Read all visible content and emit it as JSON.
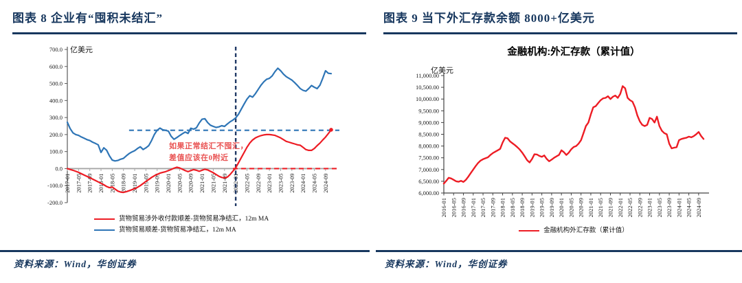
{
  "panels": {
    "fig8": {
      "title": "图表 8  企业有“囤积未结汇”",
      "unit": "亿美元",
      "annotation_line1": "如果正常结汇不囤汇，",
      "annotation_line2": "差值应该在0附近",
      "source": "资料来源：Wind，华创证券"
    },
    "fig9": {
      "title": "图表 9  当下外汇存款余额 8000+亿美元",
      "chart_title": "金融机构:外汇存款（累计值）",
      "unit": "亿美元",
      "source": "资料来源：Wind，华创证券"
    }
  },
  "chart_data": [
    {
      "id": "fig8",
      "type": "line",
      "title": "企业有“囤积未结汇”",
      "ylabel": "亿美元",
      "ylim": [
        -200,
        700
      ],
      "x_start": "2017-01",
      "x_end": "2024-11",
      "grid": false,
      "legend_position": "bottom",
      "y_ticks": [
        {
          "v": 700,
          "label": "700.0"
        },
        {
          "v": 600,
          "label": "600.0"
        },
        {
          "v": 500,
          "label": "500.0"
        },
        {
          "v": 400,
          "label": "400.0"
        },
        {
          "v": 300,
          "label": "300.0"
        },
        {
          "v": 200,
          "label": "200.0"
        },
        {
          "v": 100,
          "label": "100.0"
        },
        {
          "v": 0,
          "label": "0.0"
        },
        {
          "v": -100,
          "label": "-100.0"
        },
        {
          "v": -200,
          "label": "-200.0"
        }
      ],
      "x_tick_labels": [
        "2017-01",
        "2017-05",
        "2017-09",
        "2018-01",
        "2018-05",
        "2018-09",
        "2019-01",
        "2019-05",
        "2019-09",
        "2020-01",
        "2020-05",
        "2020-09",
        "2021-01",
        "2021-05",
        "2021-09",
        "2022-01",
        "2022-05",
        "2022-09",
        "2023-01",
        "2023-05",
        "2023-09",
        "2024-01",
        "2024-05",
        "2024-09"
      ],
      "series": [
        {
          "name": "货物贸易涉外收付款顺差-货物贸易净结汇，12m MA",
          "color": "#ed1c24",
          "values": [
            0,
            -5,
            -10,
            -16,
            -22,
            -30,
            -38,
            -46,
            -54,
            -62,
            -70,
            -78,
            -86,
            -95,
            -105,
            -112,
            -108,
            -120,
            -132,
            -138,
            -140,
            -136,
            -130,
            -124,
            -118,
            -110,
            -100,
            -88,
            -75,
            -64,
            -52,
            -42,
            -34,
            -27,
            -22,
            -18,
            -12,
            -5,
            2,
            8,
            4,
            -4,
            -12,
            -18,
            -12,
            -6,
            -10,
            -16,
            -10,
            -4,
            -8,
            -16,
            -24,
            -35,
            -45,
            -52,
            -55,
            -50,
            -35,
            -15,
            5,
            35,
            65,
            95,
            125,
            150,
            168,
            180,
            188,
            194,
            198,
            200,
            200,
            198,
            195,
            188,
            180,
            170,
            160,
            155,
            150,
            145,
            140,
            137,
            125,
            112,
            107,
            107,
            118,
            135,
            150,
            168,
            185,
            206,
            228
          ]
        },
        {
          "name": "货物贸易顺差-货物贸易净结汇，12m MA",
          "color": "#2e75b6",
          "values": [
            272,
            235,
            210,
            200,
            195,
            186,
            178,
            170,
            165,
            155,
            148,
            140,
            95,
            122,
            108,
            75,
            50,
            45,
            48,
            55,
            60,
            75,
            88,
            98,
            105,
            118,
            128,
            112,
            122,
            135,
            165,
            200,
            225,
            238,
            228,
            225,
            220,
            190,
            172,
            182,
            194,
            205,
            215,
            207,
            237,
            232,
            240,
            268,
            290,
            293,
            270,
            255,
            248,
            242,
            245,
            252,
            248,
            262,
            275,
            285,
            298,
            320,
            350,
            380,
            408,
            428,
            420,
            440,
            465,
            490,
            510,
            525,
            530,
            545,
            570,
            590,
            575,
            555,
            540,
            530,
            520,
            505,
            488,
            470,
            460,
            455,
            470,
            488,
            478,
            470,
            490,
            530,
            575,
            560,
            558
          ]
        }
      ],
      "ref_lines": [
        {
          "orient": "h",
          "value": 225,
          "from_month": 22,
          "to_month": 95,
          "color": "#2e75b6"
        },
        {
          "orient": "h",
          "value": 0,
          "from_month": 59,
          "to_month": 95,
          "color": "#ed1c24"
        },
        {
          "orient": "v",
          "month": 60,
          "at": "2022-01",
          "color": "#1f3864"
        }
      ],
      "end_marker": {
        "series": 0,
        "color": "#ed1c24"
      }
    },
    {
      "id": "fig9",
      "type": "line",
      "title": "金融机构:外汇存款（累计值）",
      "ylabel": "亿美元",
      "ylim": [
        6000,
        11000
      ],
      "x_start": "2016-01",
      "x_end": "2024-11",
      "grid": false,
      "legend_position": "bottom",
      "y_ticks": [
        {
          "v": 11000,
          "label": "11,000.00"
        },
        {
          "v": 10500,
          "label": "10,500.00"
        },
        {
          "v": 10000,
          "label": "10,000.00"
        },
        {
          "v": 9500,
          "label": "9,500.00"
        },
        {
          "v": 9000,
          "label": "9,000.00"
        },
        {
          "v": 8500,
          "label": "8,500.00"
        },
        {
          "v": 8000,
          "label": "8,000.00"
        },
        {
          "v": 7500,
          "label": "7,500.00"
        },
        {
          "v": 7000,
          "label": "7,000.00"
        },
        {
          "v": 6500,
          "label": "6,500.00"
        },
        {
          "v": 6000,
          "label": "6,000.00"
        }
      ],
      "x_tick_labels": [
        "2016-01",
        "2016-05",
        "2016-09",
        "2017-01",
        "2017-05",
        "2017-09",
        "2018-01",
        "2018-05",
        "2018-09",
        "2019-01",
        "2019-05",
        "2019-09",
        "2020-01",
        "2020-05",
        "2020-09",
        "2021-01",
        "2021-05",
        "2021-09",
        "2022-01",
        "2022-05",
        "2022-09",
        "2023-01",
        "2023-05",
        "2023-09",
        "2024-01",
        "2024-05",
        "2024-09"
      ],
      "series": [
        {
          "name": "金融机构外汇存款（累计值）",
          "color": "#ed1c24",
          "values": [
            6400,
            6520,
            6650,
            6620,
            6560,
            6500,
            6480,
            6520,
            6470,
            6560,
            6700,
            6850,
            7000,
            7150,
            7280,
            7380,
            7440,
            7480,
            7520,
            7620,
            7700,
            7760,
            7820,
            7880,
            8150,
            8350,
            8330,
            8200,
            8120,
            8040,
            7950,
            7850,
            7720,
            7560,
            7400,
            7300,
            7450,
            7650,
            7640,
            7580,
            7540,
            7600,
            7450,
            7350,
            7420,
            7500,
            7560,
            7620,
            7820,
            7740,
            7620,
            7720,
            7860,
            7960,
            8000,
            8100,
            8250,
            8550,
            8850,
            9000,
            9350,
            9650,
            9700,
            9830,
            9950,
            10030,
            10050,
            10120,
            10000,
            10100,
            10150,
            10050,
            10220,
            10550,
            10460,
            10050,
            9950,
            9890,
            9650,
            9300,
            9050,
            8900,
            8850,
            8900,
            9200,
            9150,
            9000,
            9250,
            8850,
            8650,
            8550,
            8500,
            8100,
            7900,
            7930,
            7950,
            8250,
            8300,
            8330,
            8350,
            8400,
            8370,
            8420,
            8500,
            8600,
            8430,
            8300
          ]
        }
      ],
      "ref_lines": []
    }
  ]
}
